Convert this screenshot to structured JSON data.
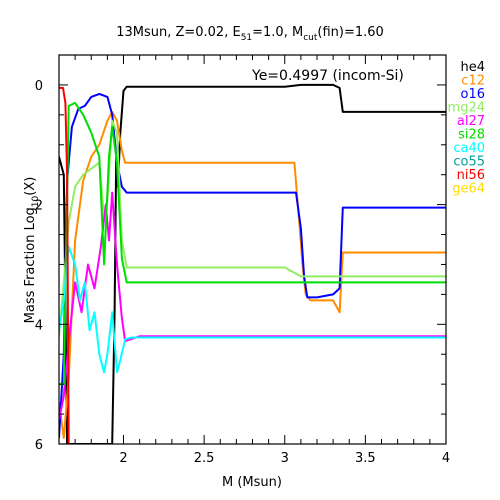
{
  "chart_data": {
    "type": "line",
    "title": {
      "prefix": "13Msun, Z=0.02, E",
      "e_sub": "51",
      "mid": "=1.0, M",
      "m_sub": "cut",
      "suffix": "(fin)=1.60"
    },
    "annotation": "Ye=0.4997 (incom-Si)",
    "xlabel": "M (Msun)",
    "ylabel": {
      "prefix": "Mass Fraction Log",
      "sub": "10",
      "suffix": "(X)"
    },
    "xlim": [
      1.6,
      4.0
    ],
    "ylim": [
      -6,
      0.5
    ],
    "x_ticks": [
      "2",
      "2.5",
      "3",
      "3.5",
      "4"
    ],
    "y_ticks": [
      "0",
      "2",
      "4",
      "6"
    ],
    "legend_position": "right-outside",
    "series": [
      {
        "name": "he4",
        "color": "#000000",
        "points": [
          [
            1.6,
            -1.2
          ],
          [
            1.63,
            -1.5
          ],
          [
            1.65,
            -6
          ],
          [
            1.88,
            -6
          ],
          [
            1.93,
            -6
          ],
          [
            1.945,
            -3.8
          ],
          [
            1.955,
            -1.2
          ],
          [
            1.965,
            -1.7
          ],
          [
            1.98,
            -0.8
          ],
          [
            2.0,
            -0.1
          ],
          [
            2.02,
            -0.03
          ],
          [
            2.5,
            -0.03
          ],
          [
            3.0,
            -0.03
          ],
          [
            3.1,
            0
          ],
          [
            3.3,
            0
          ],
          [
            3.34,
            -0.05
          ],
          [
            3.36,
            -0.45
          ],
          [
            4.0,
            -0.45
          ]
        ]
      },
      {
        "name": "c12",
        "color": "#ff8c00",
        "points": [
          [
            1.6,
            -5.3
          ],
          [
            1.63,
            -5.9
          ],
          [
            1.66,
            -4.9
          ],
          [
            1.7,
            -2.6
          ],
          [
            1.75,
            -1.6
          ],
          [
            1.8,
            -1.2
          ],
          [
            1.85,
            -1.0
          ],
          [
            1.9,
            -0.6
          ],
          [
            1.93,
            -0.45
          ],
          [
            1.96,
            -0.6
          ],
          [
            1.99,
            -1.1
          ],
          [
            2.01,
            -1.3
          ],
          [
            2.1,
            -1.3
          ],
          [
            3.06,
            -1.3
          ],
          [
            3.09,
            -2.3
          ],
          [
            3.11,
            -3.0
          ],
          [
            3.13,
            -3.5
          ],
          [
            3.16,
            -3.6
          ],
          [
            3.24,
            -3.6
          ],
          [
            3.3,
            -3.6
          ],
          [
            3.34,
            -3.8
          ],
          [
            3.36,
            -2.8
          ],
          [
            4.0,
            -2.8
          ]
        ]
      },
      {
        "name": "o16",
        "color": "#0000ff",
        "points": [
          [
            1.6,
            -5.9
          ],
          [
            1.63,
            -4.5
          ],
          [
            1.65,
            -1.6
          ],
          [
            1.68,
            -0.7
          ],
          [
            1.72,
            -0.4
          ],
          [
            1.76,
            -0.35
          ],
          [
            1.8,
            -0.2
          ],
          [
            1.85,
            -0.15
          ],
          [
            1.9,
            -0.2
          ],
          [
            1.93,
            -0.5
          ],
          [
            1.96,
            -1.3
          ],
          [
            1.99,
            -1.7
          ],
          [
            2.02,
            -1.8
          ],
          [
            2.5,
            -1.8
          ],
          [
            3.07,
            -1.8
          ],
          [
            3.1,
            -2.4
          ],
          [
            3.12,
            -3.2
          ],
          [
            3.14,
            -3.55
          ],
          [
            3.2,
            -3.55
          ],
          [
            3.3,
            -3.5
          ],
          [
            3.34,
            -3.4
          ],
          [
            3.36,
            -2.05
          ],
          [
            4.0,
            -2.05
          ]
        ]
      },
      {
        "name": "mg24",
        "color": "#90ee60",
        "points": [
          [
            1.6,
            -4.2
          ],
          [
            1.63,
            -3.3
          ],
          [
            1.66,
            -2.3
          ],
          [
            1.7,
            -1.7
          ],
          [
            1.75,
            -1.5
          ],
          [
            1.8,
            -1.4
          ],
          [
            1.85,
            -1.3
          ],
          [
            1.88,
            -2.2
          ],
          [
            1.9,
            -1.9
          ],
          [
            1.93,
            -0.6
          ],
          [
            1.96,
            -0.8
          ],
          [
            1.99,
            -2.6
          ],
          [
            2.02,
            -3.05
          ],
          [
            2.5,
            -3.05
          ],
          [
            3.0,
            -3.05
          ],
          [
            3.1,
            -3.2
          ],
          [
            4.0,
            -3.2
          ]
        ]
      },
      {
        "name": "al27",
        "color": "#ff00ff",
        "points": [
          [
            1.6,
            -5.6
          ],
          [
            1.63,
            -5.2
          ],
          [
            1.66,
            -4.3
          ],
          [
            1.7,
            -3.3
          ],
          [
            1.74,
            -3.8
          ],
          [
            1.78,
            -3.0
          ],
          [
            1.82,
            -3.4
          ],
          [
            1.86,
            -2.7
          ],
          [
            1.89,
            -2.0
          ],
          [
            1.91,
            -2.6
          ],
          [
            1.93,
            -1.8
          ],
          [
            1.96,
            -3.0
          ],
          [
            1.99,
            -3.9
          ],
          [
            2.01,
            -4.28
          ],
          [
            2.1,
            -4.2
          ],
          [
            4.0,
            -4.2
          ]
        ]
      },
      {
        "name": "si28",
        "color": "#00dd00",
        "points": [
          [
            1.6,
            -5.0
          ],
          [
            1.63,
            -5.0
          ],
          [
            1.66,
            -0.35
          ],
          [
            1.7,
            -0.3
          ],
          [
            1.75,
            -0.5
          ],
          [
            1.8,
            -0.8
          ],
          [
            1.85,
            -1.2
          ],
          [
            1.88,
            -3.0
          ],
          [
            1.91,
            -1.2
          ],
          [
            1.93,
            -0.7
          ],
          [
            1.96,
            -1.3
          ],
          [
            1.99,
            -2.9
          ],
          [
            2.02,
            -3.3
          ],
          [
            2.5,
            -3.3
          ],
          [
            4.0,
            -3.3
          ]
        ]
      },
      {
        "name": "ca40",
        "color": "#00ffff",
        "points": [
          [
            1.6,
            -4.1
          ],
          [
            1.63,
            -3.6
          ],
          [
            1.66,
            -2.7
          ],
          [
            1.7,
            -3.0
          ],
          [
            1.73,
            -3.6
          ],
          [
            1.76,
            -3.3
          ],
          [
            1.79,
            -4.1
          ],
          [
            1.82,
            -3.8
          ],
          [
            1.85,
            -4.5
          ],
          [
            1.88,
            -4.8
          ],
          [
            1.9,
            -4.5
          ],
          [
            1.93,
            -3.8
          ],
          [
            1.96,
            -4.8
          ],
          [
            1.98,
            -4.6
          ],
          [
            2.01,
            -4.25
          ],
          [
            2.05,
            -4.22
          ],
          [
            4.0,
            -4.22
          ]
        ]
      },
      {
        "name": "co55",
        "color": "#00a0a0",
        "points": []
      },
      {
        "name": "ni56",
        "color": "#ff0000",
        "points": [
          [
            1.6,
            -0.05
          ],
          [
            1.625,
            -0.05
          ],
          [
            1.64,
            -0.3
          ],
          [
            1.65,
            -1.5
          ],
          [
            1.66,
            -6
          ]
        ]
      },
      {
        "name": "ge64",
        "color": "#ffdd00",
        "points": []
      }
    ]
  }
}
